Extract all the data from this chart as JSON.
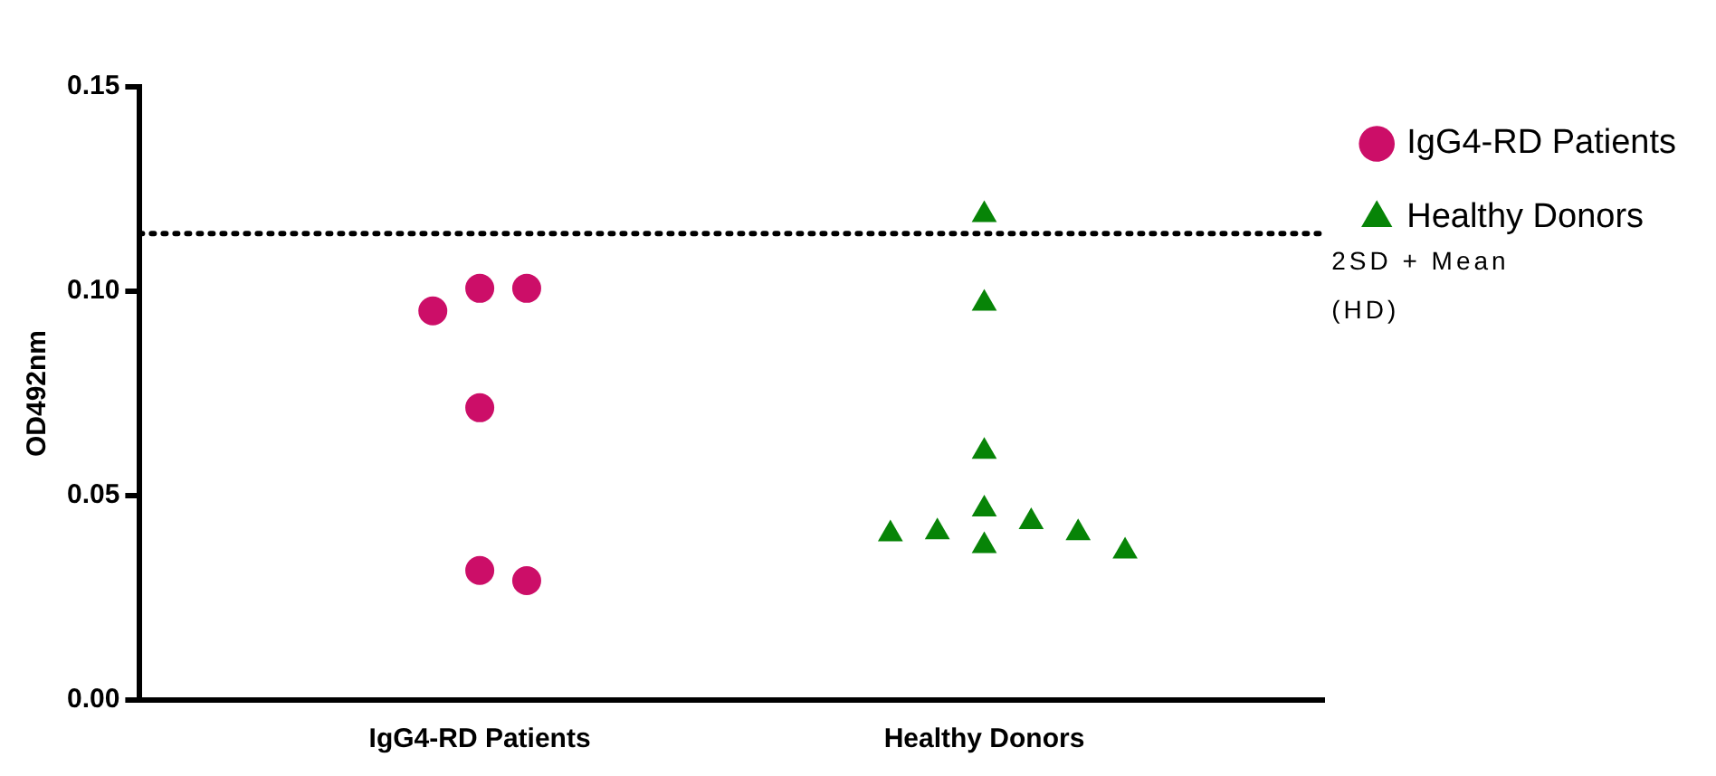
{
  "chart_data": {
    "type": "scatter",
    "ylabel": "OD492nm",
    "categories": [
      "IgG4-RD Patients",
      "Healthy Donors"
    ],
    "series": [
      {
        "name": "IgG4-RD Patients",
        "color": "#cc0e68",
        "marker": "circle",
        "x": [
          "IgG4-RD Patients",
          "IgG4-RD Patients",
          "IgG4-RD Patients",
          "IgG4-RD Patients",
          "IgG4-RD Patients",
          "IgG4-RD Patients"
        ],
        "values": [
          0.1007,
          0.0952,
          0.1007,
          0.0715,
          0.0292,
          0.0317
        ]
      },
      {
        "name": "Healthy Donors",
        "color": "#078407",
        "marker": "triangle",
        "x": [
          "Healthy Donors",
          "Healthy Donors",
          "Healthy Donors",
          "Healthy Donors",
          "Healthy Donors",
          "Healthy Donors",
          "Healthy Donors",
          "Healthy Donors",
          "Healthy Donors",
          "Healthy Donors"
        ],
        "values": [
          0.1187,
          0.097,
          0.0608,
          0.0467,
          0.0411,
          0.0406,
          0.0364,
          0.0377,
          0.0409,
          0.0436
        ]
      }
    ],
    "ylim": [
      0,
      0.15
    ],
    "yticks": [
      {
        "value": 0,
        "label": "0.00"
      },
      {
        "value": 0.05,
        "label": "0.05"
      },
      {
        "value": 0.1,
        "label": "0.10"
      },
      {
        "value": 0.15,
        "label": "0.15"
      }
    ],
    "ref_lines": [
      {
        "axis": "y",
        "value": 0.1141,
        "label": "2SD + Mean (HD)",
        "color": "#000000",
        "line_style": "dotted"
      }
    ],
    "grid": false,
    "legend": "top right"
  }
}
